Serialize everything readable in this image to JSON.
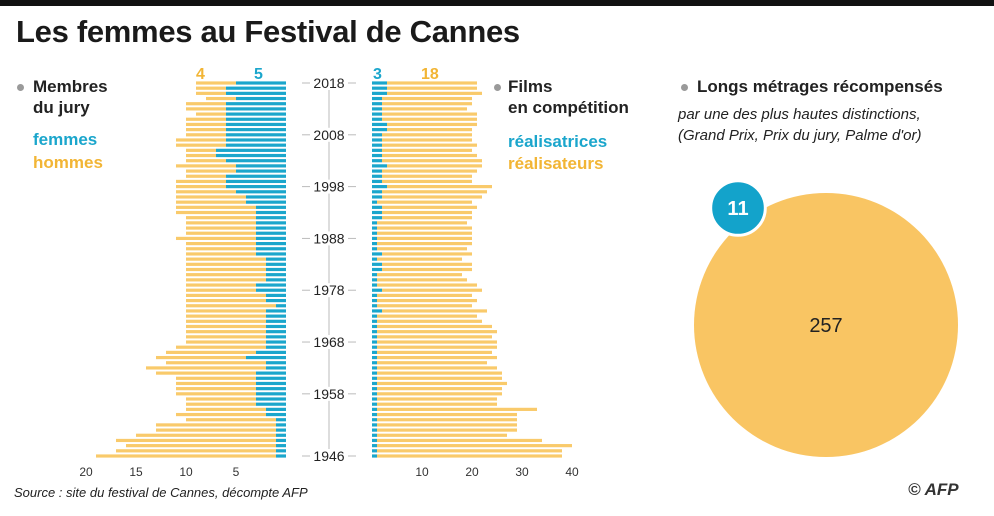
{
  "title": "Les femmes au Festival de Cannes",
  "jury": {
    "heading_line1": "Membres",
    "heading_line2": "du jury",
    "legend_women": "femmes",
    "legend_men": "hommes",
    "highlight_men": "4",
    "highlight_women": "5"
  },
  "films": {
    "heading_line1": "Films",
    "heading_line2": "en compétition",
    "legend_women": "réalisatrices",
    "legend_men": "réalisateurs",
    "highlight_women": "3",
    "highlight_men": "18"
  },
  "awards": {
    "heading": "Longs métrages récompensés",
    "subtitle_line1": "par une des plus hautes distinctions,",
    "subtitle_line2": "(Grand Prix, Prix du jury, Palme d'or)",
    "women_value": "11",
    "men_value": "257"
  },
  "source": "Source : site du festival de Cannes, décompte AFP",
  "credit": "© AFP",
  "colors": {
    "women": "#1ba6cc",
    "men": "#f9ca6b",
    "men_text": "#f2b535"
  },
  "chart_data": [
    {
      "type": "bar",
      "orientation": "horizontal-mirrored",
      "series": [
        {
          "name": "femmes",
          "values": [
            5,
            6,
            6,
            5,
            6,
            6,
            6,
            6,
            6,
            6,
            6,
            6,
            6,
            7,
            7,
            6,
            5,
            5,
            6,
            6,
            6,
            5,
            4,
            4,
            3,
            3,
            3,
            3,
            3,
            3,
            3,
            3,
            3,
            3,
            2,
            2,
            2,
            2,
            2,
            3,
            3,
            2,
            2,
            1,
            2,
            2,
            2,
            2,
            2,
            2,
            2,
            2,
            3,
            4,
            2,
            2,
            3,
            3,
            3,
            3,
            3,
            3,
            3,
            2,
            2,
            1,
            1,
            1,
            1,
            1,
            1,
            1,
            1
          ]
        },
        {
          "name": "hommes",
          "values": [
            4,
            3,
            3,
            3,
            4,
            4,
            3,
            4,
            4,
            4,
            4,
            5,
            5,
            3,
            3,
            4,
            6,
            5,
            4,
            5,
            5,
            6,
            7,
            7,
            8,
            8,
            7,
            7,
            7,
            7,
            8,
            7,
            7,
            7,
            8,
            8,
            8,
            8,
            8,
            7,
            7,
            8,
            8,
            9,
            8,
            8,
            8,
            8,
            8,
            8,
            8,
            9,
            9,
            9,
            10,
            12,
            10,
            8,
            8,
            8,
            8,
            7,
            7,
            8,
            9,
            9,
            12,
            12,
            14,
            16,
            15,
            16,
            18
          ]
        }
      ],
      "years": [
        2018,
        2017,
        2016,
        2015,
        2014,
        2013,
        2012,
        2011,
        2010,
        2009,
        2008,
        2007,
        2006,
        2005,
        2004,
        2003,
        2002,
        2001,
        2000,
        1999,
        1998,
        1997,
        1996,
        1995,
        1994,
        1993,
        1992,
        1991,
        1990,
        1989,
        1988,
        1987,
        1986,
        1985,
        1984,
        1983,
        1982,
        1981,
        1980,
        1979,
        1978,
        1977,
        1976,
        1975,
        1974,
        1973,
        1972,
        1971,
        1970,
        1969,
        1968,
        1967,
        1966,
        1965,
        1964,
        1963,
        1962,
        1961,
        1960,
        1959,
        1958,
        1957,
        1956,
        1955,
        1954,
        1953,
        1952,
        1951,
        1950,
        1949,
        1948,
        1947,
        1946
      ],
      "ytick_labels": [
        "2018",
        "2008",
        "1998",
        "1988",
        "1978",
        "1968",
        "1958",
        "1946"
      ],
      "xtick_labels": [
        "20",
        "15",
        "10",
        "5"
      ],
      "xlim": [
        0,
        22
      ]
    },
    {
      "type": "bar",
      "orientation": "horizontal",
      "series": [
        {
          "name": "réalisatrices",
          "values": [
            3,
            3,
            3,
            2,
            2,
            2,
            2,
            2,
            3,
            3,
            2,
            2,
            2,
            2,
            2,
            2,
            3,
            2,
            2,
            2,
            3,
            2,
            2,
            1,
            2,
            2,
            2,
            1,
            1,
            1,
            1,
            1,
            1,
            2,
            1,
            2,
            2,
            1,
            1,
            1,
            2,
            1,
            1,
            1,
            2,
            1,
            1,
            1,
            1,
            1,
            1,
            1,
            1,
            1,
            1,
            1,
            1,
            1,
            1,
            1,
            1,
            1,
            1,
            1,
            1,
            1,
            1,
            1,
            1,
            1,
            1,
            1,
            1
          ]
        },
        {
          "name": "réalisateurs",
          "values": [
            18,
            18,
            19,
            18,
            18,
            17,
            19,
            19,
            18,
            17,
            18,
            18,
            19,
            18,
            19,
            20,
            19,
            19,
            18,
            18,
            21,
            21,
            20,
            19,
            19,
            18,
            18,
            18,
            19,
            19,
            19,
            19,
            18,
            18,
            17,
            18,
            18,
            17,
            18,
            20,
            20,
            19,
            20,
            19,
            21,
            20,
            21,
            23,
            24,
            23,
            24,
            24,
            23,
            24,
            22,
            24,
            25,
            25,
            26,
            25,
            25,
            24,
            24,
            32,
            28,
            28,
            28,
            28,
            26,
            33,
            39,
            37,
            37
          ]
        }
      ],
      "xtick_labels": [
        "10",
        "20",
        "30",
        "40"
      ],
      "xlim": [
        0,
        46
      ]
    },
    {
      "type": "pie",
      "categories": [
        "femmes",
        "hommes"
      ],
      "values": [
        11,
        257
      ]
    }
  ]
}
